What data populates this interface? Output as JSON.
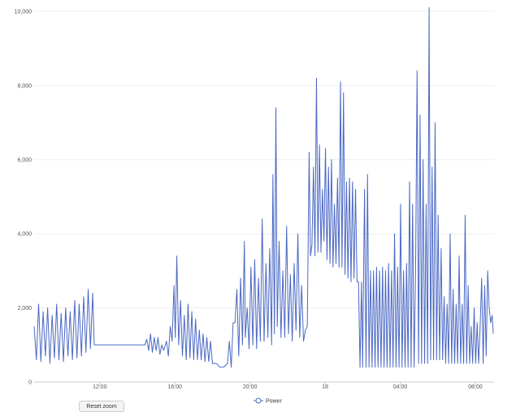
{
  "chart_data": {
    "type": "line",
    "title": "",
    "xlabel": "",
    "ylabel": "",
    "ylim": [
      0,
      10000
    ],
    "y_ticks": [
      0,
      2000,
      4000,
      6000,
      8000,
      10000
    ],
    "y_tick_labels": [
      "0",
      "2,000",
      "4,000",
      "6,000",
      "8,000",
      "10,000"
    ],
    "x_range_hours": [
      8.5,
      33.0
    ],
    "x_ticks": [
      12,
      16,
      20,
      24,
      28,
      32
    ],
    "x_tick_labels": [
      "12:00",
      "16:00",
      "20:00",
      "18",
      "04:00",
      "08:00"
    ],
    "grid": "horizontal",
    "legend_position": "bottom-center",
    "series": [
      {
        "name": "Power",
        "color": "#4a68c4",
        "points": [
          [
            8.5,
            1500
          ],
          [
            8.62,
            600
          ],
          [
            8.74,
            2100
          ],
          [
            8.86,
            550
          ],
          [
            8.98,
            1900
          ],
          [
            9.1,
            700
          ],
          [
            9.22,
            2000
          ],
          [
            9.34,
            500
          ],
          [
            9.46,
            1800
          ],
          [
            9.58,
            650
          ],
          [
            9.7,
            2100
          ],
          [
            9.82,
            600
          ],
          [
            9.94,
            1850
          ],
          [
            10.06,
            550
          ],
          [
            10.18,
            2000
          ],
          [
            10.3,
            700
          ],
          [
            10.42,
            1900
          ],
          [
            10.54,
            600
          ],
          [
            10.66,
            2200
          ],
          [
            10.78,
            650
          ],
          [
            10.9,
            2100
          ],
          [
            11.02,
            700
          ],
          [
            11.14,
            2300
          ],
          [
            11.26,
            800
          ],
          [
            11.38,
            2500
          ],
          [
            11.5,
            900
          ],
          [
            11.62,
            2400
          ],
          [
            11.7,
            1000
          ],
          [
            12.0,
            1000
          ],
          [
            14.4,
            1000
          ],
          [
            14.5,
            1150
          ],
          [
            14.6,
            850
          ],
          [
            14.7,
            1300
          ],
          [
            14.8,
            800
          ],
          [
            14.9,
            1200
          ],
          [
            15.0,
            850
          ],
          [
            15.1,
            1200
          ],
          [
            15.2,
            750
          ],
          [
            15.3,
            1000
          ],
          [
            15.4,
            850
          ],
          [
            15.55,
            1100
          ],
          [
            15.65,
            700
          ],
          [
            15.75,
            1500
          ],
          [
            15.85,
            1100
          ],
          [
            15.95,
            2600
          ],
          [
            16.02,
            1200
          ],
          [
            16.1,
            3400
          ],
          [
            16.2,
            1000
          ],
          [
            16.3,
            2200
          ],
          [
            16.4,
            700
          ],
          [
            16.5,
            1800
          ],
          [
            16.6,
            600
          ],
          [
            16.7,
            2100
          ],
          [
            16.8,
            650
          ],
          [
            16.9,
            1900
          ],
          [
            17.0,
            600
          ],
          [
            17.1,
            1700
          ],
          [
            17.2,
            600
          ],
          [
            17.3,
            1400
          ],
          [
            17.4,
            600
          ],
          [
            17.5,
            1300
          ],
          [
            17.6,
            550
          ],
          [
            17.7,
            1200
          ],
          [
            17.8,
            550
          ],
          [
            17.9,
            1100
          ],
          [
            18.0,
            500
          ],
          [
            18.2,
            500
          ],
          [
            18.4,
            400
          ],
          [
            18.6,
            400
          ],
          [
            18.8,
            500
          ],
          [
            18.9,
            1100
          ],
          [
            19.0,
            400
          ],
          [
            19.1,
            1600
          ],
          [
            19.2,
            1600
          ],
          [
            19.3,
            2500
          ],
          [
            19.4,
            700
          ],
          [
            19.5,
            2800
          ],
          [
            19.6,
            1000
          ],
          [
            19.7,
            3800
          ],
          [
            19.75,
            1200
          ],
          [
            19.85,
            2000
          ],
          [
            19.95,
            900
          ],
          [
            20.05,
            3100
          ],
          [
            20.15,
            1000
          ],
          [
            20.25,
            3300
          ],
          [
            20.35,
            900
          ],
          [
            20.45,
            2800
          ],
          [
            20.55,
            1100
          ],
          [
            20.65,
            4400
          ],
          [
            20.75,
            1100
          ],
          [
            20.85,
            3200
          ],
          [
            20.95,
            1200
          ],
          [
            21.05,
            3600
          ],
          [
            21.15,
            1000
          ],
          [
            21.22,
            5600
          ],
          [
            21.3,
            1300
          ],
          [
            21.38,
            7400
          ],
          [
            21.45,
            1500
          ],
          [
            21.55,
            3800
          ],
          [
            21.65,
            1200
          ],
          [
            21.75,
            3000
          ],
          [
            21.85,
            1200
          ],
          [
            21.95,
            4200
          ],
          [
            22.05,
            1300
          ],
          [
            22.15,
            2900
          ],
          [
            22.25,
            1100
          ],
          [
            22.35,
            3200
          ],
          [
            22.45,
            1400
          ],
          [
            22.55,
            4000
          ],
          [
            22.65,
            1200
          ],
          [
            22.75,
            2600
          ],
          [
            22.85,
            1100
          ],
          [
            22.95,
            1400
          ],
          [
            23.05,
            1500
          ],
          [
            23.15,
            6200
          ],
          [
            23.22,
            3400
          ],
          [
            23.3,
            3700
          ],
          [
            23.38,
            5800
          ],
          [
            23.46,
            3400
          ],
          [
            23.54,
            8200
          ],
          [
            23.62,
            3500
          ],
          [
            23.7,
            6400
          ],
          [
            23.78,
            3500
          ],
          [
            23.86,
            5200
          ],
          [
            23.94,
            3800
          ],
          [
            24.02,
            6300
          ],
          [
            24.1,
            3300
          ],
          [
            24.18,
            5800
          ],
          [
            24.26,
            3200
          ],
          [
            24.34,
            6000
          ],
          [
            24.42,
            3100
          ],
          [
            24.5,
            4800
          ],
          [
            24.58,
            3200
          ],
          [
            24.66,
            5500
          ],
          [
            24.74,
            3100
          ],
          [
            24.82,
            8100
          ],
          [
            24.9,
            3100
          ],
          [
            24.98,
            7800
          ],
          [
            25.06,
            2900
          ],
          [
            25.14,
            5400
          ],
          [
            25.22,
            2800
          ],
          [
            25.3,
            5500
          ],
          [
            25.38,
            2700
          ],
          [
            25.46,
            5400
          ],
          [
            25.54,
            2800
          ],
          [
            25.62,
            5200
          ],
          [
            25.7,
            2700
          ],
          [
            25.78,
            2700
          ],
          [
            25.86,
            400
          ],
          [
            25.94,
            2700
          ],
          [
            26.0,
            400
          ],
          [
            26.1,
            5200
          ],
          [
            26.18,
            400
          ],
          [
            26.26,
            5600
          ],
          [
            26.34,
            400
          ],
          [
            26.42,
            3000
          ],
          [
            26.5,
            400
          ],
          [
            26.58,
            3000
          ],
          [
            26.66,
            400
          ],
          [
            26.74,
            3100
          ],
          [
            26.82,
            400
          ],
          [
            26.9,
            3000
          ],
          [
            26.98,
            400
          ],
          [
            27.06,
            3100
          ],
          [
            27.14,
            400
          ],
          [
            27.22,
            3000
          ],
          [
            27.3,
            400
          ],
          [
            27.38,
            3200
          ],
          [
            27.46,
            400
          ],
          [
            27.54,
            3000
          ],
          [
            27.62,
            400
          ],
          [
            27.7,
            4000
          ],
          [
            27.78,
            400
          ],
          [
            27.86,
            3100
          ],
          [
            27.94,
            400
          ],
          [
            28.02,
            4800
          ],
          [
            28.1,
            400
          ],
          [
            28.18,
            3000
          ],
          [
            28.26,
            400
          ],
          [
            28.34,
            3200
          ],
          [
            28.42,
            400
          ],
          [
            28.5,
            5400
          ],
          [
            28.58,
            400
          ],
          [
            28.66,
            4800
          ],
          [
            28.74,
            400
          ],
          [
            28.82,
            3000
          ],
          [
            28.9,
            8400
          ],
          [
            28.98,
            500
          ],
          [
            29.06,
            7200
          ],
          [
            29.14,
            500
          ],
          [
            29.22,
            6000
          ],
          [
            29.3,
            500
          ],
          [
            29.38,
            4800
          ],
          [
            29.46,
            500
          ],
          [
            29.54,
            10100
          ],
          [
            29.62,
            600
          ],
          [
            29.7,
            5800
          ],
          [
            29.78,
            600
          ],
          [
            29.86,
            7000
          ],
          [
            29.94,
            600
          ],
          [
            30.02,
            4500
          ],
          [
            30.1,
            600
          ],
          [
            30.18,
            3600
          ],
          [
            30.26,
            600
          ],
          [
            30.34,
            2300
          ],
          [
            30.42,
            500
          ],
          [
            30.5,
            2100
          ],
          [
            30.58,
            500
          ],
          [
            30.66,
            4000
          ],
          [
            30.74,
            500
          ],
          [
            30.82,
            2500
          ],
          [
            30.9,
            500
          ],
          [
            30.98,
            2100
          ],
          [
            31.06,
            500
          ],
          [
            31.14,
            3400
          ],
          [
            31.22,
            500
          ],
          [
            31.3,
            2100
          ],
          [
            31.38,
            500
          ],
          [
            31.46,
            4500
          ],
          [
            31.54,
            500
          ],
          [
            31.62,
            2600
          ],
          [
            31.7,
            500
          ],
          [
            31.78,
            1500
          ],
          [
            31.86,
            500
          ],
          [
            31.94,
            2000
          ],
          [
            32.02,
            500
          ],
          [
            32.1,
            1600
          ],
          [
            32.18,
            500
          ],
          [
            32.26,
            1500
          ],
          [
            32.34,
            2800
          ],
          [
            32.42,
            500
          ],
          [
            32.5,
            2600
          ],
          [
            32.58,
            700
          ],
          [
            32.66,
            3000
          ],
          [
            32.74,
            2000
          ],
          [
            32.82,
            1600
          ],
          [
            32.9,
            1800
          ],
          [
            32.96,
            1300
          ]
        ]
      }
    ]
  },
  "controls": {
    "reset_label": "Reset zoom"
  }
}
